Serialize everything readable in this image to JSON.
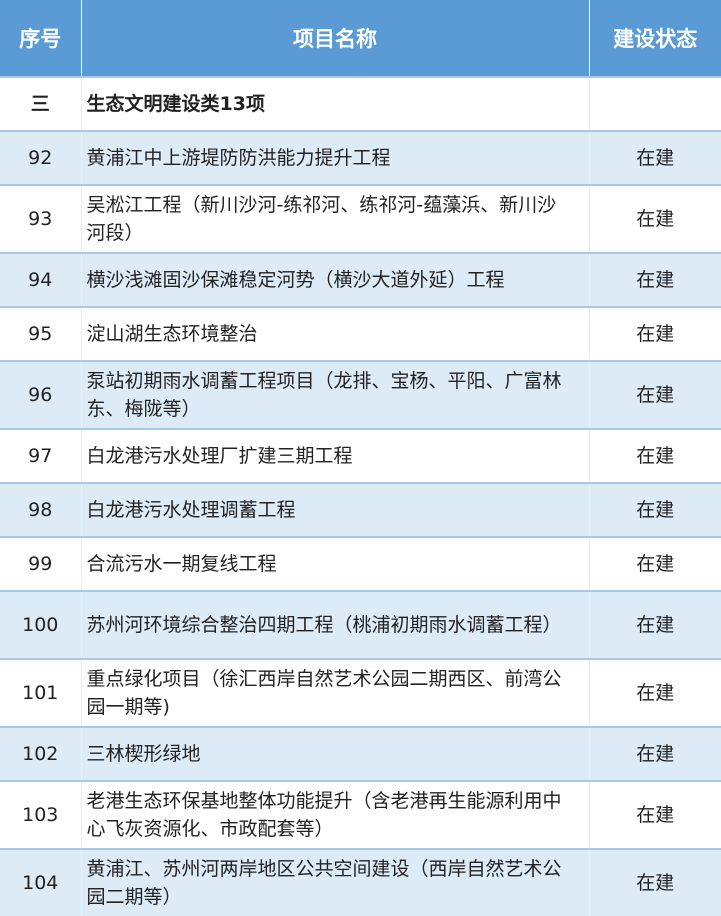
{
  "header": {
    "col_index": "序号",
    "col_name": "项目名称",
    "col_status": "建设状态"
  },
  "section": {
    "index": "三",
    "title": "生态文明建设类13项"
  },
  "rows": [
    {
      "index": "92",
      "name": "黄浦江中上游堤防防洪能力提升工程",
      "status": "在建"
    },
    {
      "index": "93",
      "name": "吴淞江工程（新川沙河-练祁河、练祁河-蕴藻浜、新川沙河段）",
      "status": "在建"
    },
    {
      "index": "94",
      "name": "横沙浅滩固沙保滩稳定河势（横沙大道外延）工程",
      "status": "在建"
    },
    {
      "index": "95",
      "name": "淀山湖生态环境整治",
      "status": "在建"
    },
    {
      "index": "96",
      "name": "泵站初期雨水调蓄工程项目（龙排、宝杨、平阳、广富林东、梅陇等）",
      "status": "在建"
    },
    {
      "index": "97",
      "name": "白龙港污水处理厂扩建三期工程",
      "status": "在建"
    },
    {
      "index": "98",
      "name": "白龙港污水处理调蓄工程",
      "status": "在建"
    },
    {
      "index": "99",
      "name": "合流污水一期复线工程",
      "status": "在建"
    },
    {
      "index": "100",
      "name": "苏州河环境综合整治四期工程（桃浦初期雨水调蓄工程）",
      "status": "在建"
    },
    {
      "index": "101",
      "name": "重点绿化项目（徐汇西岸自然艺术公园二期西区、前湾公园一期等)",
      "status": "在建"
    },
    {
      "index": "102",
      "name": "三林楔形绿地",
      "status": "在建"
    },
    {
      "index": "103",
      "name": "老港生态环保基地整体功能提升（含老港再生能源利用中心飞灰资源化、市政配套等）",
      "status": "在建"
    },
    {
      "index": "104",
      "name": "黄浦江、苏州河两岸地区公共空间建设（西岸自然艺术公园二期等）",
      "status": "在建"
    }
  ],
  "colors": {
    "header_bg": "#5b9bd5",
    "alt_row_bg": "#ddebf7",
    "border": "#a9c8e6"
  }
}
